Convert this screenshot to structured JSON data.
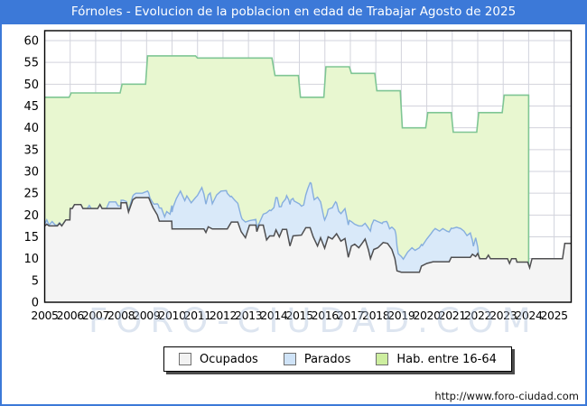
{
  "title_bar": {
    "text": "Fórnoles - Evolucion de la poblacion en edad de Trabajar Agosto de 2025"
  },
  "watermark": "FORO-CIUDAD.COM",
  "footer": {
    "url": "http://www.foro-ciudad.com"
  },
  "legend": {
    "items": [
      {
        "label": "Ocupados",
        "fill": "#f2f2f2",
        "border": "#6f6f6f"
      },
      {
        "label": "Parados",
        "fill": "#cfe3f7",
        "border": "#6f6f6f"
      },
      {
        "label": "Hab. entre 16-64",
        "fill": "#cdee9f",
        "border": "#6f6f6f"
      }
    ]
  },
  "colors": {
    "title_bar": "#3c79d8",
    "frame": "#3c79d8",
    "plot_bg": "#ffffff",
    "grid": "#d2d3dc",
    "plot_border": "#000000",
    "ocupados_fill": "#f4f4f4",
    "ocupados_line": "#4f4f51",
    "parados_fill": "#d9e9f9",
    "parados_line": "#86aede",
    "hab_fill": "#e8f7d0",
    "hab_line": "#7fc694"
  },
  "chart_data": {
    "type": "area",
    "title": "Fórnoles - Evolucion de la poblacion en edad de Trabajar Agosto de 2025",
    "x_axis": {
      "range": [
        2005,
        2025.67
      ],
      "labels": [
        "2005",
        "2006",
        "2007",
        "2008",
        "2009",
        "2010",
        "2011",
        "2012",
        "2013",
        "2014",
        "2015",
        "2016",
        "2017",
        "2018",
        "2019",
        "2020",
        "2021",
        "2022",
        "2023",
        "2024",
        "2025"
      ]
    },
    "y_axis": {
      "range": [
        0,
        62.3
      ],
      "ticks": [
        0,
        5,
        10,
        15,
        20,
        25,
        30,
        35,
        40,
        45,
        50,
        55,
        60
      ]
    },
    "grid": true,
    "legend_position": "bottom",
    "series": [
      {
        "name": "Hab. entre 16-64",
        "kind": "independent-area",
        "note": "annual step values, data ends Jan 2024",
        "points": [
          [
            2005.0,
            47
          ],
          [
            2005.96,
            47
          ],
          [
            2006.04,
            48
          ],
          [
            2007.96,
            48
          ],
          [
            2008.04,
            50
          ],
          [
            2008.96,
            50
          ],
          [
            2009.04,
            56.5
          ],
          [
            2010.92,
            56.5
          ],
          [
            2011.0,
            56
          ],
          [
            2013.92,
            56
          ],
          [
            2014.04,
            52
          ],
          [
            2014.96,
            52
          ],
          [
            2015.04,
            47
          ],
          [
            2015.96,
            47
          ],
          [
            2016.04,
            54
          ],
          [
            2016.96,
            54
          ],
          [
            2017.04,
            52.5
          ],
          [
            2017.96,
            52.5
          ],
          [
            2018.04,
            48.5
          ],
          [
            2018.96,
            48.5
          ],
          [
            2019.04,
            40
          ],
          [
            2019.96,
            40
          ],
          [
            2020.04,
            43.5
          ],
          [
            2020.96,
            43.5
          ],
          [
            2021.04,
            39
          ],
          [
            2021.96,
            39
          ],
          [
            2022.04,
            43.5
          ],
          [
            2022.96,
            43.5
          ],
          [
            2023.04,
            47.5
          ],
          [
            2024.0,
            47.5
          ]
        ]
      },
      {
        "name": "Parados",
        "kind": "stacked-on-ocupados",
        "note": "monthly estimates, visible until early 2022 then 0",
        "points": [
          [
            2005.0,
            0.4
          ],
          [
            2005.08,
            1.0
          ],
          [
            2005.17,
            0.2
          ],
          [
            2005.29,
            1.0
          ],
          [
            2005.42,
            0.2
          ],
          [
            2005.83,
            0.0
          ],
          [
            2006.67,
            0.0
          ],
          [
            2006.75,
            0.7
          ],
          [
            2006.83,
            0.0
          ],
          [
            2007.42,
            0.0
          ],
          [
            2007.54,
            1.5
          ],
          [
            2007.79,
            1.5
          ],
          [
            2007.88,
            0.6
          ],
          [
            2008.08,
            0.6
          ],
          [
            2008.25,
            0.2
          ],
          [
            2008.5,
            1.0
          ],
          [
            2008.83,
            1.0
          ],
          [
            2008.96,
            1.3
          ],
          [
            2009.04,
            1.5
          ],
          [
            2009.13,
            0.6
          ],
          [
            2009.29,
            1.2
          ],
          [
            2009.46,
            3.0
          ],
          [
            2009.58,
            3.0
          ],
          [
            2009.71,
            1.0
          ],
          [
            2009.79,
            2.2
          ],
          [
            2009.92,
            1.6
          ],
          [
            2010.04,
            5.0
          ],
          [
            2010.17,
            7.0
          ],
          [
            2010.33,
            8.7
          ],
          [
            2010.5,
            6.5
          ],
          [
            2010.58,
            7.6
          ],
          [
            2010.75,
            6.0
          ],
          [
            2010.92,
            7.2
          ],
          [
            2011.0,
            7.7
          ],
          [
            2011.17,
            9.5
          ],
          [
            2011.33,
            6.5
          ],
          [
            2011.5,
            8.0
          ],
          [
            2011.58,
            5.8
          ],
          [
            2011.75,
            7.8
          ],
          [
            2011.92,
            8.7
          ],
          [
            2012.13,
            8.8
          ],
          [
            2012.29,
            6.2
          ],
          [
            2012.46,
            5.0
          ],
          [
            2012.63,
            4.0
          ],
          [
            2012.75,
            3.2
          ],
          [
            2012.88,
            3.6
          ],
          [
            2013.04,
            1.0
          ],
          [
            2013.29,
            1.3
          ],
          [
            2013.42,
            0.4
          ],
          [
            2013.58,
            2.5
          ],
          [
            2013.71,
            6.2
          ],
          [
            2013.88,
            5.8
          ],
          [
            2014.0,
            6.5
          ],
          [
            2014.13,
            8.0
          ],
          [
            2014.29,
            5.8
          ],
          [
            2014.46,
            7.0
          ],
          [
            2014.58,
            9.2
          ],
          [
            2014.67,
            9.8
          ],
          [
            2014.79,
            8.0
          ],
          [
            2015.0,
            7.2
          ],
          [
            2015.17,
            6.0
          ],
          [
            2015.33,
            9.0
          ],
          [
            2015.46,
            10.9
          ],
          [
            2015.58,
            9.0
          ],
          [
            2015.71,
            11.2
          ],
          [
            2015.83,
            8.2
          ],
          [
            2015.96,
            6.6
          ],
          [
            2016.08,
            6.0
          ],
          [
            2016.25,
            7.0
          ],
          [
            2016.42,
            7.6
          ],
          [
            2016.54,
            6.0
          ],
          [
            2016.71,
            6.6
          ],
          [
            2016.83,
            7.0
          ],
          [
            2016.96,
            7.6
          ],
          [
            2017.04,
            5.6
          ],
          [
            2017.17,
            4.6
          ],
          [
            2017.33,
            5.0
          ],
          [
            2017.46,
            4.0
          ],
          [
            2017.58,
            3.6
          ],
          [
            2017.71,
            5.0
          ],
          [
            2017.83,
            7.0
          ],
          [
            2017.96,
            6.6
          ],
          [
            2018.08,
            6.0
          ],
          [
            2018.25,
            4.6
          ],
          [
            2018.42,
            5.0
          ],
          [
            2018.54,
            4.0
          ],
          [
            2018.67,
            5.6
          ],
          [
            2018.79,
            7.0
          ],
          [
            2018.88,
            4.0
          ],
          [
            2019.0,
            3.6
          ],
          [
            2019.08,
            3.0
          ],
          [
            2019.25,
            4.6
          ],
          [
            2019.42,
            5.6
          ],
          [
            2019.54,
            5.0
          ],
          [
            2019.71,
            5.6
          ],
          [
            2019.83,
            4.6
          ],
          [
            2020.0,
            5.6
          ],
          [
            2020.17,
            6.6
          ],
          [
            2020.33,
            7.6
          ],
          [
            2020.5,
            7.0
          ],
          [
            2020.63,
            7.6
          ],
          [
            2020.79,
            7.0
          ],
          [
            2021.0,
            6.6
          ],
          [
            2021.17,
            6.9
          ],
          [
            2021.33,
            6.6
          ],
          [
            2021.46,
            6.0
          ],
          [
            2021.58,
            5.0
          ],
          [
            2021.71,
            5.6
          ],
          [
            2021.83,
            2.0
          ],
          [
            2021.92,
            4.3
          ],
          [
            2022.04,
            0.0
          ],
          [
            2025.67,
            0.0
          ]
        ]
      },
      {
        "name": "Ocupados",
        "kind": "base-area",
        "note": "monthly estimates Jan 2005 - Aug 2025",
        "points": [
          [
            2005.0,
            17.5
          ],
          [
            2005.08,
            17.9
          ],
          [
            2005.17,
            17.5
          ],
          [
            2005.5,
            17.5
          ],
          [
            2005.58,
            18.1
          ],
          [
            2005.67,
            17.5
          ],
          [
            2005.83,
            18.9
          ],
          [
            2005.99,
            18.9
          ],
          [
            2006.0,
            21.5
          ],
          [
            2006.08,
            21.5
          ],
          [
            2006.17,
            22.4
          ],
          [
            2006.42,
            22.4
          ],
          [
            2006.5,
            21.5
          ],
          [
            2007.08,
            21.5
          ],
          [
            2007.17,
            22.4
          ],
          [
            2007.25,
            21.5
          ],
          [
            2007.99,
            21.5
          ],
          [
            2008.0,
            22.8
          ],
          [
            2008.21,
            22.8
          ],
          [
            2008.29,
            20.7
          ],
          [
            2008.46,
            23.5
          ],
          [
            2008.58,
            24.0
          ],
          [
            2009.08,
            24.0
          ],
          [
            2009.17,
            22.8
          ],
          [
            2009.25,
            21.7
          ],
          [
            2009.42,
            20.0
          ],
          [
            2009.5,
            18.6
          ],
          [
            2009.99,
            18.6
          ],
          [
            2010.0,
            16.8
          ],
          [
            2011.25,
            16.8
          ],
          [
            2011.33,
            16.0
          ],
          [
            2011.42,
            17.3
          ],
          [
            2011.58,
            16.8
          ],
          [
            2012.17,
            16.8
          ],
          [
            2012.33,
            18.4
          ],
          [
            2012.58,
            18.4
          ],
          [
            2012.71,
            16.2
          ],
          [
            2012.88,
            14.8
          ],
          [
            2013.04,
            17.7
          ],
          [
            2013.29,
            17.7
          ],
          [
            2013.33,
            16.2
          ],
          [
            2013.42,
            17.7
          ],
          [
            2013.58,
            17.7
          ],
          [
            2013.71,
            14.3
          ],
          [
            2013.83,
            15.2
          ],
          [
            2014.0,
            15.2
          ],
          [
            2014.08,
            16.6
          ],
          [
            2014.21,
            15.0
          ],
          [
            2014.33,
            16.7
          ],
          [
            2014.5,
            16.7
          ],
          [
            2014.58,
            14.3
          ],
          [
            2014.63,
            12.9
          ],
          [
            2014.75,
            15.2
          ],
          [
            2015.08,
            15.4
          ],
          [
            2015.25,
            17.1
          ],
          [
            2015.42,
            17.1
          ],
          [
            2015.54,
            15.0
          ],
          [
            2015.71,
            12.9
          ],
          [
            2015.83,
            14.8
          ],
          [
            2015.99,
            12.4
          ],
          [
            2016.13,
            15.0
          ],
          [
            2016.29,
            14.5
          ],
          [
            2016.46,
            15.7
          ],
          [
            2016.63,
            14.0
          ],
          [
            2016.79,
            14.6
          ],
          [
            2016.92,
            10.3
          ],
          [
            2017.04,
            12.9
          ],
          [
            2017.17,
            13.3
          ],
          [
            2017.33,
            12.5
          ],
          [
            2017.46,
            13.5
          ],
          [
            2017.58,
            14.5
          ],
          [
            2017.71,
            12.0
          ],
          [
            2017.79,
            10.0
          ],
          [
            2017.92,
            12.1
          ],
          [
            2018.08,
            12.5
          ],
          [
            2018.29,
            13.7
          ],
          [
            2018.46,
            13.5
          ],
          [
            2018.63,
            12.1
          ],
          [
            2018.75,
            10.0
          ],
          [
            2018.83,
            7.2
          ],
          [
            2019.0,
            6.9
          ],
          [
            2019.71,
            6.9
          ],
          [
            2019.79,
            8.3
          ],
          [
            2020.0,
            8.9
          ],
          [
            2020.25,
            9.3
          ],
          [
            2020.88,
            9.3
          ],
          [
            2020.96,
            10.3
          ],
          [
            2021.71,
            10.3
          ],
          [
            2021.79,
            11.0
          ],
          [
            2021.92,
            10.5
          ],
          [
            2022.0,
            11.2
          ],
          [
            2022.08,
            10.0
          ],
          [
            2022.33,
            10.0
          ],
          [
            2022.42,
            10.8
          ],
          [
            2022.5,
            10.0
          ],
          [
            2023.17,
            10.0
          ],
          [
            2023.25,
            8.9
          ],
          [
            2023.33,
            10.0
          ],
          [
            2023.5,
            10.0
          ],
          [
            2023.54,
            9.2
          ],
          [
            2023.96,
            9.2
          ],
          [
            2024.04,
            7.9
          ],
          [
            2024.13,
            10.0
          ],
          [
            2025.33,
            10.0
          ],
          [
            2025.42,
            13.5
          ],
          [
            2025.67,
            13.5
          ]
        ]
      }
    ]
  }
}
